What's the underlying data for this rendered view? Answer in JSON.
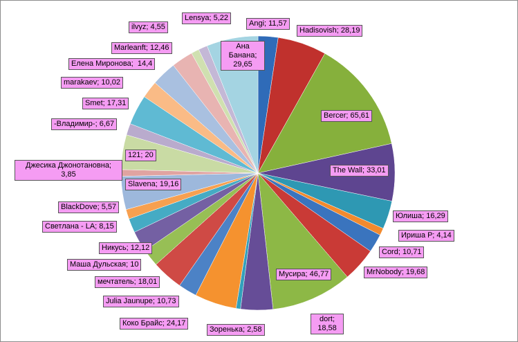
{
  "chart_data": {
    "type": "pie",
    "values": [
      11.57,
      28.19,
      65.61,
      33.01,
      16.29,
      4.14,
      10.71,
      19.68,
      46.77,
      18.58,
      2.58,
      24.17,
      10.73,
      18.01,
      10,
      12.12,
      8.15,
      5.57,
      19.16,
      3.85,
      20,
      6.67,
      17.31,
      10.02,
      14.4,
      12.46,
      4.55,
      5.22,
      29.65
    ],
    "value_labels": [
      "Angi; 11,57",
      "Hadisovish; 28,19",
      "Bercer; 65,61",
      "The Wall; 33,01",
      "Юлиша; 16,29",
      "Ириша Р; 4,14",
      "Cord; 10,71",
      "MrNobody; 19,68",
      "Мусира; 46,77",
      "dort; 18,58",
      "Зоренька; 2,58",
      "Коко Брайс; 24,17",
      "Julia Jaunupe; 10,73",
      "мечтатель; 18,01",
      "Маша Дульская; 10",
      "Никусь; 12,12",
      "Светлана - LA; 8,15",
      "BlackDove; 5,57",
      "Slavena; 19,16",
      "Джесика Джонотановна; 3,85",
      "121; 20",
      "-Владимир-; 6,67",
      "Smet; 17,31",
      "marakaev; 10,02",
      "Елена Миронова;  14,4",
      "Marleanft; 12,46",
      "ilvyz; 4,55",
      "Lensya; 5,22",
      "Ана Банана; 29,65"
    ],
    "colors": [
      "#2F6BB8",
      "#C0312D",
      "#86B03C",
      "#5E4590",
      "#2E98B3",
      "#F28A2E",
      "#3A74BE",
      "#C93A36",
      "#8DB846",
      "#664D97",
      "#33A0BB",
      "#F5922F",
      "#4C82C6",
      "#CF4A45",
      "#97BF55",
      "#7460A3",
      "#45ABC4",
      "#F7A050",
      "#9DB8DC",
      "#E0A3A1",
      "#C9DBA4",
      "#B9ABCD",
      "#5FBAD3",
      "#FABB86",
      "#A9C0E0",
      "#E8B4B2",
      "#D0E0B0",
      "#C4B8D6",
      "#A4D4E2"
    ]
  }
}
